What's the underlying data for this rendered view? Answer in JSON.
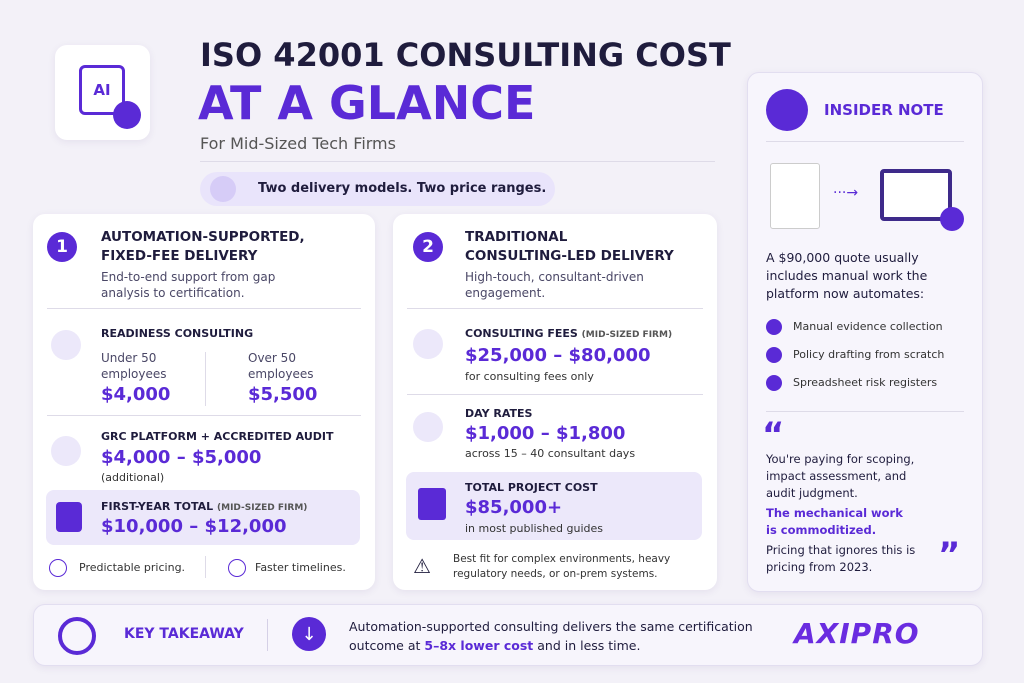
{
  "header": {
    "icon_label": "AI",
    "title_line1": "ISO 42001 CONSULTING COST",
    "title_line2": "AT A GLANCE",
    "subtitle": "For Mid-Sized Tech Firms"
  },
  "banner": "Two delivery models. Two price ranges.",
  "model1": {
    "number": "1",
    "title_line1": "AUTOMATION-SUPPORTED,",
    "title_line2": "FIXED-FEE DELIVERY",
    "description": "End-to-end support from gap analysis to certification.",
    "readiness": {
      "label": "READINESS CONSULTING",
      "under_label": "Under 50 employees",
      "under_price": "$4,000",
      "over_label": "Over 50 employees",
      "over_price": "$5,500"
    },
    "grc": {
      "label": "GRC PLATFORM + ACCREDITED AUDIT",
      "price": "$4,000 – $5,000",
      "note": "(additional)"
    },
    "total": {
      "label": "FIRST-YEAR TOTAL",
      "qualifier": "(MID-SIZED FIRM)",
      "price": "$10,000 – $12,000"
    },
    "benefits": [
      "Predictable pricing.",
      "Faster timelines."
    ]
  },
  "model2": {
    "number": "2",
    "title_line1": "TRADITIONAL",
    "title_line2": "CONSULTING-LED DELIVERY",
    "description": "High-touch, consultant-driven engagement.",
    "fees": {
      "label": "CONSULTING FEES",
      "qualifier": "(MID-SIZED FIRM)",
      "price": "$25,000 – $80,000",
      "note": "for consulting fees only"
    },
    "day_rates": {
      "label": "DAY RATES",
      "price": "$1,000 – $1,800",
      "note": "across 15 – 40 consultant days"
    },
    "total": {
      "label": "TOTAL PROJECT COST",
      "price": "$85,000+",
      "note": "in most published guides"
    },
    "warning": "Best fit for complex environments, heavy regulatory needs, or on-prem systems."
  },
  "insider": {
    "label": "INSIDER NOTE",
    "intro": "A $90,000 quote usually includes manual work the platform now automates:",
    "items": [
      "Manual evidence collection",
      "Policy drafting from scratch",
      "Spreadsheet risk registers"
    ],
    "quote": "You're paying for scoping, impact assessment, and audit judgment.",
    "emphasis": "The mechanical work is commoditized.",
    "closing": "Pricing that ignores this is pricing from 2023."
  },
  "takeaway": {
    "label": "KEY TAKEAWAY",
    "text_before": "Automation-supported consulting delivers the same certification outcome at ",
    "highlight": "5–8x lower cost",
    "text_after": " and in less time."
  },
  "brand": "AXIPRO"
}
